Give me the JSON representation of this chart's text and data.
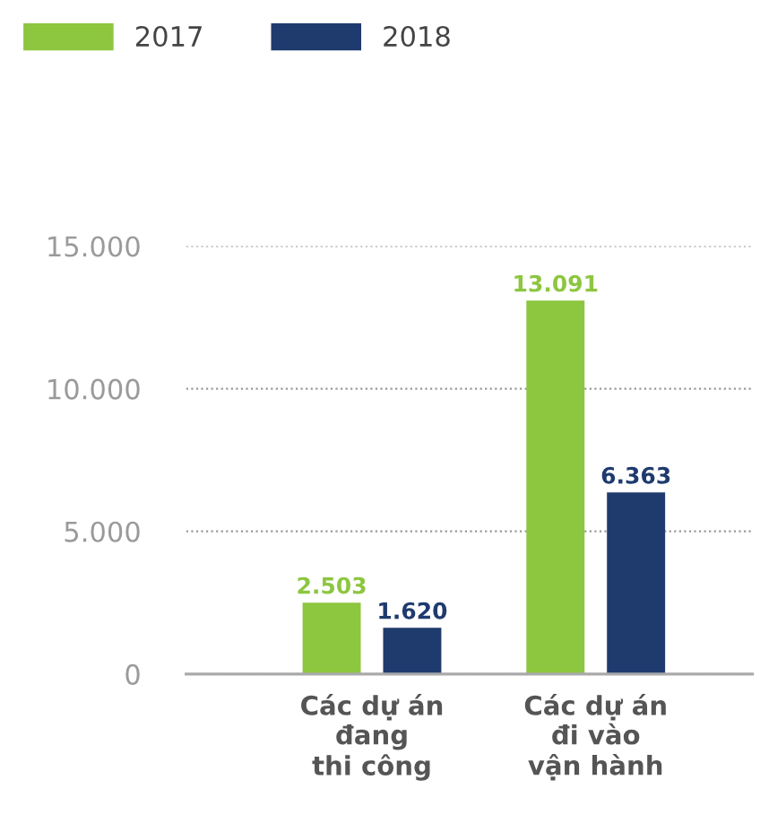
{
  "chart_data": {
    "type": "bar",
    "categories": [
      "Các dự án\nđang\nthi công",
      "Các dự án\nđi vào\nvận hành"
    ],
    "series": [
      {
        "name": "2017",
        "color": "#8dc63f",
        "values": [
          2503,
          13091
        ],
        "value_labels": [
          "2.503",
          "13.091"
        ]
      },
      {
        "name": "2018",
        "color": "#1f3b6e",
        "values": [
          1620,
          6363
        ],
        "value_labels": [
          "1.620",
          "6.363"
        ]
      }
    ],
    "ylim": [
      0,
      15000
    ],
    "yticks": [
      0,
      {
        "value": 5000,
        "label": "5.000"
      },
      {
        "value": 10000,
        "label": "10.000"
      },
      {
        "value": 15000,
        "label": "15.000"
      }
    ],
    "grid": "y",
    "legend": "top left"
  }
}
